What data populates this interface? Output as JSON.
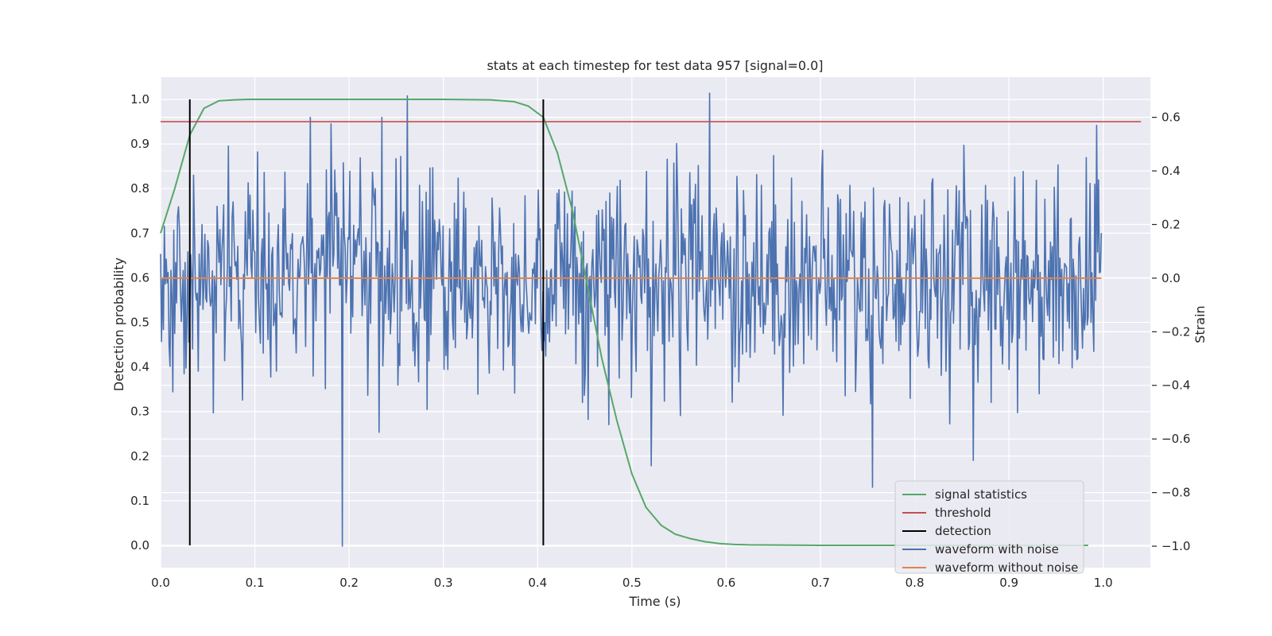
{
  "chart_data": {
    "type": "line",
    "title": "stats at each timestep for test data 957 [signal=0.0]",
    "xlabel": "Time (s)",
    "ylabel": "Detection probability",
    "y2label": "Strain",
    "xlim": [
      0.0,
      1.05
    ],
    "ylim": [
      -0.05,
      1.05
    ],
    "y2lim": [
      -1.08,
      0.75
    ],
    "xticks": [
      "0.0",
      "0.1",
      "0.2",
      "0.3",
      "0.4",
      "0.5",
      "0.6",
      "0.7",
      "0.8",
      "0.9",
      "1.0"
    ],
    "xtick_values": [
      0.0,
      0.1,
      0.2,
      0.3,
      0.4,
      0.5,
      0.6,
      0.7,
      0.8,
      0.9,
      1.0
    ],
    "yticks": [
      "0.0",
      "0.1",
      "0.2",
      "0.3",
      "0.4",
      "0.5",
      "0.6",
      "0.7",
      "0.8",
      "0.9",
      "1.0"
    ],
    "ytick_values": [
      0.0,
      0.1,
      0.2,
      0.3,
      0.4,
      0.5,
      0.6,
      0.7,
      0.8,
      0.9,
      1.0
    ],
    "y2ticks": [
      "−1.0",
      "−0.8",
      "−0.6",
      "−0.4",
      "−0.2",
      "0.0",
      "0.2",
      "0.4",
      "0.6"
    ],
    "y2tick_values": [
      -1.0,
      -0.8,
      -0.6,
      -0.4,
      -0.2,
      0.0,
      0.2,
      0.4,
      0.6
    ],
    "grid": true,
    "legend_position": "bottom-right",
    "series": [
      {
        "name": "signal statistics",
        "axis": "left",
        "color": "#55a868",
        "x": [
          0.0,
          0.015,
          0.031,
          0.046,
          0.062,
          0.078,
          0.093,
          0.2,
          0.3,
          0.35,
          0.375,
          0.39,
          0.406,
          0.421,
          0.437,
          0.453,
          0.468,
          0.484,
          0.5,
          0.515,
          0.531,
          0.546,
          0.562,
          0.578,
          0.593,
          0.609,
          0.625,
          0.7,
          0.8,
          0.9,
          0.984
        ],
        "y": [
          0.7,
          0.8,
          0.92,
          0.98,
          0.997,
          0.999,
          1.0,
          1.0,
          1.0,
          0.999,
          0.995,
          0.985,
          0.96,
          0.88,
          0.75,
          0.58,
          0.42,
          0.28,
          0.16,
          0.085,
          0.045,
          0.025,
          0.015,
          0.008,
          0.004,
          0.002,
          0.001,
          0.0,
          0.0,
          0.0,
          0.0
        ]
      },
      {
        "name": "threshold",
        "axis": "left",
        "color": "#c44e52",
        "x": [
          0.0,
          1.04
        ],
        "y": [
          0.95,
          0.95
        ]
      },
      {
        "name": "detection",
        "axis": "left",
        "color": "#000000",
        "segments": [
          {
            "x": 0.031,
            "y": [
              0.0,
              1.0
            ]
          },
          {
            "x": 0.406,
            "y": [
              0.0,
              1.0
            ]
          }
        ]
      },
      {
        "name": "waveform with noise",
        "axis": "right",
        "color": "#4c72b0",
        "x_range": [
          0.0,
          0.998
        ],
        "sample_count": 1000,
        "amplitude_std": 0.2,
        "notable_points": [
          {
            "x": 0.193,
            "y": -1.0
          },
          {
            "x": 0.262,
            "y": 0.68
          },
          {
            "x": 0.582,
            "y": 0.69
          },
          {
            "x": 0.755,
            "y": -0.78
          },
          {
            "x": 0.862,
            "y": -0.68
          },
          {
            "x": 0.52,
            "y": -0.7
          },
          {
            "x": 0.235,
            "y": 0.6
          },
          {
            "x": 0.993,
            "y": 0.57
          }
        ]
      },
      {
        "name": "waveform without noise",
        "axis": "right",
        "color": "#dd8452",
        "x": [
          0.0,
          0.998
        ],
        "y": [
          0.0,
          0.0
        ]
      }
    ]
  },
  "colors": {
    "plot_background": "#eaeaf2",
    "grid": "#ffffff",
    "text": "#262626"
  }
}
